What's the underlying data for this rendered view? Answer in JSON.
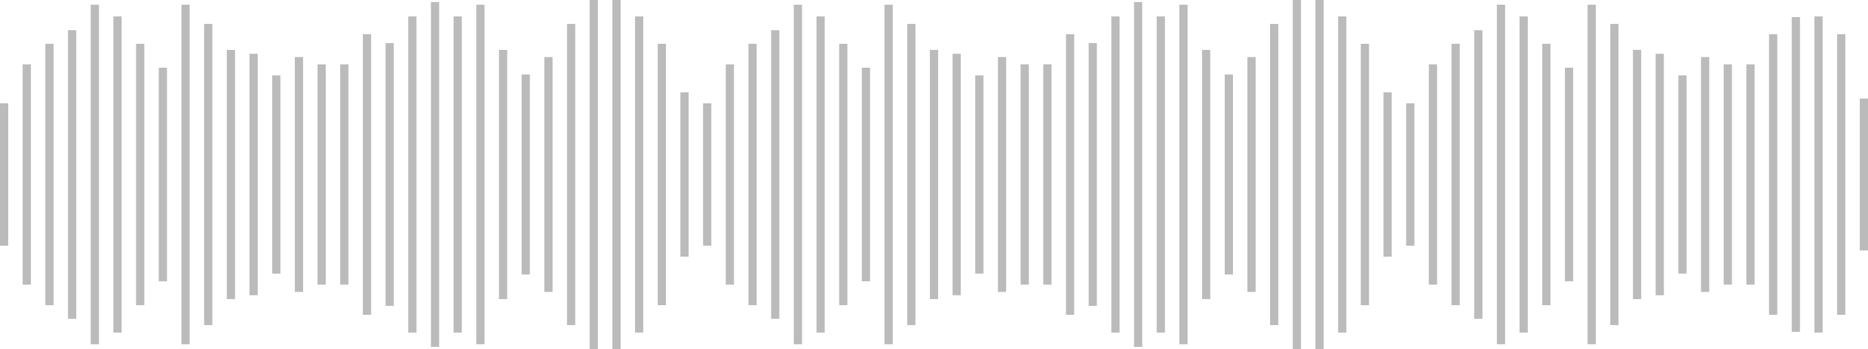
{
  "waveform": {
    "bar_color": "#bbbbbb",
    "background_color": "#ffffff",
    "levels": [
      0.408,
      0.631,
      0.749,
      0.827,
      0.973,
      0.906,
      0.749,
      0.612,
      0.973,
      0.863,
      0.714,
      0.692,
      0.568,
      0.673,
      0.631,
      0.631,
      0.804,
      0.753,
      0.906,
      0.988,
      0.906,
      0.973,
      0.714,
      0.573,
      0.673,
      0.863,
      1.0,
      1.0,
      0.906,
      0.749,
      0.471,
      0.408,
      0.631,
      0.749,
      0.827,
      0.973,
      0.906,
      0.749,
      0.612,
      0.973,
      0.863,
      0.714,
      0.692,
      0.568,
      0.673,
      0.631,
      0.631,
      0.804,
      0.753,
      0.906,
      0.988,
      0.906,
      0.973,
      0.714,
      0.573,
      0.673,
      0.863,
      1.0,
      1.0,
      0.906,
      0.749,
      0.471,
      0.408,
      0.631,
      0.749,
      0.827,
      0.973,
      0.906,
      0.749,
      0.612,
      0.973,
      0.863,
      0.714,
      0.692,
      0.568,
      0.673,
      0.631,
      0.631,
      0.804,
      0.902,
      0.906,
      0.804,
      0.435
    ]
  }
}
